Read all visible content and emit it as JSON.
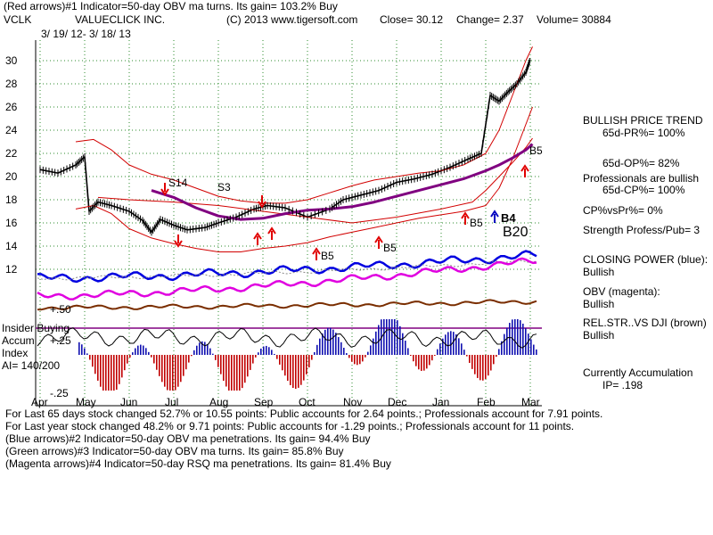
{
  "colors": {
    "price_bars": "#000000",
    "bands": "#d20000",
    "ma50": "#800080",
    "closing_power": "#0000e0",
    "obv": "#e000e0",
    "rel_str": "#7a2e00",
    "accum_pos": "#1010b0",
    "accum_neg": "#c00000",
    "grid": "#2e8b2e",
    "arrow_red": "#e00000",
    "arrow_blue": "#0000c0"
  },
  "header": {
    "line1": "(Red arrows)#1 Indicator=50-day OBV ma turns. Its gain= 103.2% Buy",
    "symbol": "VCLK",
    "company": "VALUECLICK INC.",
    "copyright": "(C) 2013 www.tigersoft.com",
    "close": "Close= 30.12",
    "change": "Change= 2.37",
    "volume": "Volume= 30884",
    "date_range": "3/ 19/ 12- 3/ 18/ 13"
  },
  "labels": {
    "s14": "S14",
    "s3": "S3",
    "b5a": "B5",
    "b5b": "B5",
    "b5c": "B5",
    "b5d": "B5",
    "b20": "B20",
    "b4": "B4"
  },
  "insider": {
    "l1": "Insider Buying",
    "l2": "Accum",
    "l3": "Index",
    "l4": "AI= 140/200",
    "p50": "+.50",
    "p25": "+.25",
    "m25": "-.25"
  },
  "side_panel": {
    "trend_title": "BULLISH PRICE TREND",
    "pr": "65d-PR%= 100%",
    "op": "65d-OP%= 82%",
    "pros": "Professionals are bullish",
    "cp": "65d-CP%= 100%",
    "cpvspr": "CP%vsPr%= 0%",
    "strength": "Strength Profess/Pub= 3",
    "closing_power": "CLOSING POWER (blue):",
    "closing_power_v": "Bullish",
    "obv": "OBV (magenta):",
    "obv_v": "Bullish",
    "relstr": "REL.STR..VS DJI (brown)",
    "relstr_v": "Bullish",
    "accum": "Currently Accumulation",
    "ip": "IP= .198"
  },
  "footer": {
    "l1": "For Last 65 days stock changed 52.7% or 10.55 points: Public accounts for 2.64 points.; Professionals account for 7.91 points.",
    "l2": "For Last year stock changed 48.2% or 9.71 points: Public accounts for -1.29 points.; Professionals account for 11 points.",
    "l3": "(Blue arrows)#2 Indicator=50-day OBV ma penetrations. Its gain= 94.4% Buy",
    "l4": "(Green arrows)#3 Indicator=50-day OBV ma turns. Its gain= 85.8% Buy",
    "l5": "(Magenta arrows)#4 Indicator=50-day RSQ ma penetrations. Its gain= 81.4% Buy"
  },
  "chart_data": {
    "type": "line",
    "title": "VCLK VALUECLICK INC. 3/19/12 - 3/18/13",
    "x_labels": [
      "Apr",
      "May",
      "Jun",
      "Jul",
      "Aug",
      "Sep",
      "Oct",
      "Nov",
      "Dec",
      "Jan",
      "Feb",
      "Mar"
    ],
    "y_ticks": [
      12,
      14,
      16,
      18,
      20,
      22,
      24,
      26,
      28,
      30
    ],
    "ylim": [
      11,
      31
    ],
    "xlim": [
      0,
      11.2
    ],
    "series": [
      {
        "name": "Price",
        "x": [
          0,
          0.4,
          0.8,
          1.0,
          1.1,
          1.3,
          1.6,
          2.0,
          2.3,
          2.5,
          2.7,
          3.0,
          3.3,
          3.7,
          4.0,
          4.4,
          4.8,
          5.1,
          5.5,
          6.0,
          6.5,
          6.8,
          7.2,
          7.6,
          8.0,
          8.4,
          8.8,
          9.2,
          9.6,
          9.9,
          10.1,
          10.3,
          10.5,
          10.7,
          10.9,
          11.0
        ],
        "values": [
          20.6,
          20.3,
          21.0,
          21.7,
          17.0,
          17.8,
          17.5,
          17.0,
          16.2,
          15.2,
          16.3,
          15.8,
          15.4,
          15.6,
          16.0,
          16.5,
          17.2,
          17.5,
          17.3,
          16.5,
          17.2,
          18.0,
          18.4,
          18.8,
          19.5,
          19.8,
          20.2,
          20.8,
          21.5,
          22.0,
          27.0,
          26.5,
          27.3,
          28.0,
          29.0,
          30.1
        ]
      },
      {
        "name": "Upper Band",
        "x": [
          0.8,
          1.2,
          1.6,
          2.0,
          2.5,
          3.0,
          3.5,
          4.0,
          4.5,
          5.0,
          5.5,
          6.0,
          6.5,
          7.0,
          7.5,
          8.0,
          8.5,
          9.0,
          9.5,
          10.0,
          10.3,
          10.6,
          10.9,
          11.05
        ],
        "values": [
          23.0,
          23.2,
          22.3,
          21.0,
          20.2,
          19.7,
          19.0,
          18.3,
          17.9,
          17.7,
          17.7,
          18.0,
          18.6,
          19.2,
          19.7,
          20.0,
          20.3,
          20.5,
          21.0,
          22.0,
          24.0,
          27.0,
          30.0,
          31.2
        ]
      },
      {
        "name": "Lower Band",
        "x": [
          0.8,
          1.2,
          1.6,
          2.0,
          2.5,
          3.0,
          3.5,
          4.0,
          4.5,
          5.0,
          5.5,
          6.0,
          6.5,
          7.0,
          7.5,
          8.0,
          8.5,
          9.0,
          9.5,
          10.0,
          10.3,
          10.6,
          10.9,
          11.05
        ],
        "values": [
          17.2,
          17.5,
          16.8,
          15.5,
          14.7,
          14.2,
          13.8,
          13.5,
          13.5,
          13.8,
          14.0,
          14.3,
          14.8,
          15.2,
          15.6,
          16.0,
          16.4,
          16.7,
          17.0,
          17.5,
          19.0,
          21.5,
          24.5,
          26.0
        ]
      },
      {
        "name": "Band Lower 2",
        "x": [
          1.3,
          2.0,
          3.0,
          4.0,
          5.0,
          6.0,
          7.0,
          8.0,
          9.0,
          9.7,
          10.0,
          10.3,
          10.6,
          10.9,
          11.05
        ],
        "values": [
          18.2,
          18.0,
          17.8,
          17.5,
          17.0,
          16.5,
          16.0,
          16.5,
          17.2,
          17.8,
          18.8,
          20.0,
          21.2,
          22.5,
          23.3
        ]
      },
      {
        "name": "50-day MA",
        "x": [
          2.5,
          3.0,
          3.5,
          4.0,
          4.5,
          5.0,
          5.5,
          6.0,
          6.5,
          7.0,
          7.5,
          8.0,
          8.5,
          9.0,
          9.5,
          10.0,
          10.3,
          10.6,
          10.9,
          11.05
        ],
        "values": [
          18.8,
          18.2,
          17.3,
          16.6,
          16.3,
          16.4,
          16.8,
          17.1,
          17.2,
          17.4,
          17.8,
          18.3,
          18.8,
          19.3,
          19.8,
          20.5,
          21.0,
          21.6,
          22.3,
          22.8
        ]
      }
    ]
  }
}
